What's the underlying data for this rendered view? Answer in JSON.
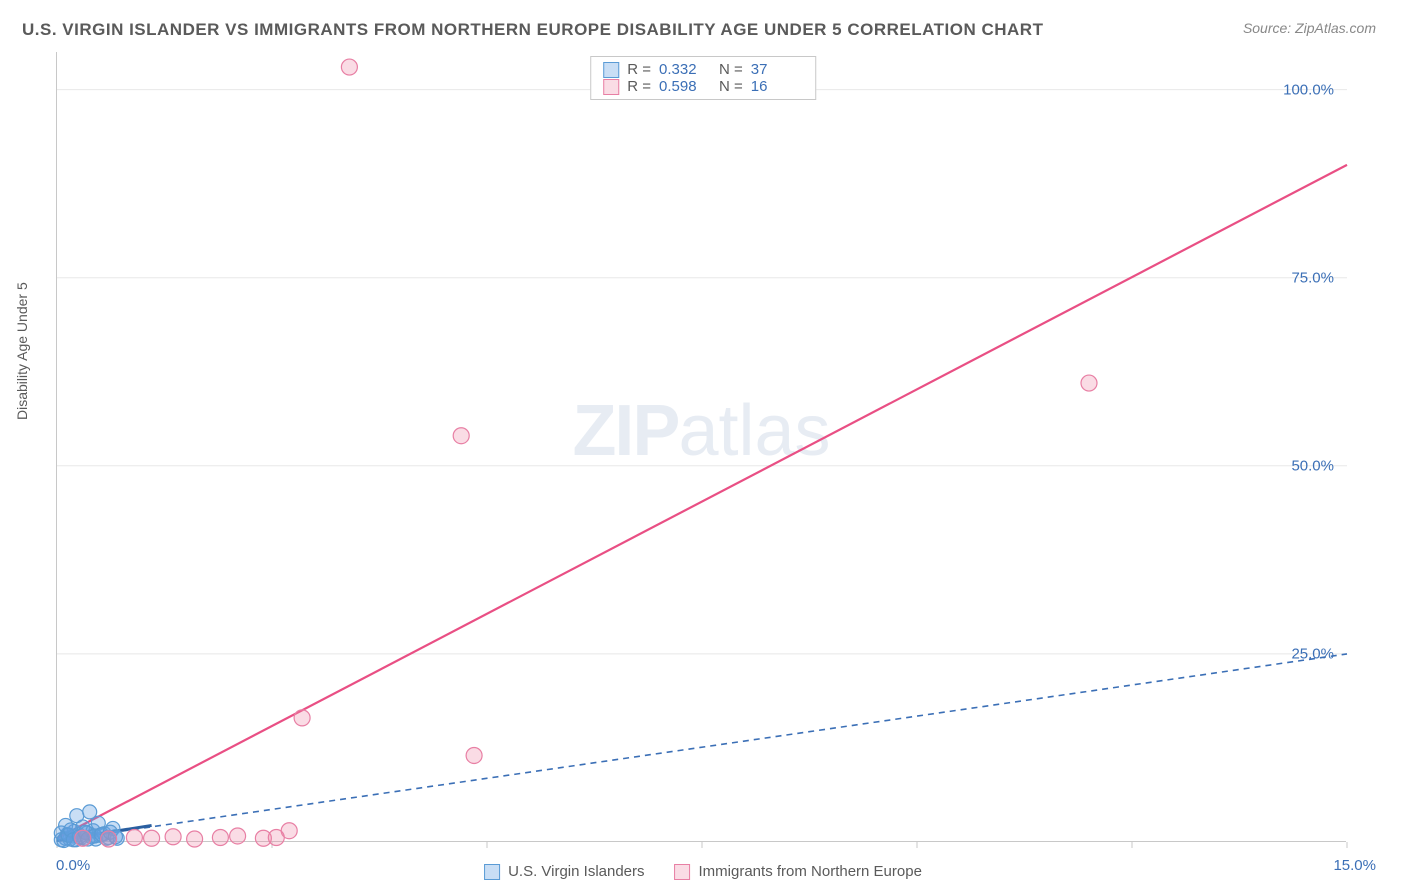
{
  "title": "U.S. VIRGIN ISLANDER VS IMMIGRANTS FROM NORTHERN EUROPE DISABILITY AGE UNDER 5 CORRELATION CHART",
  "source": "Source: ZipAtlas.com",
  "watermark_zip": "ZIP",
  "watermark_atlas": "atlas",
  "chart": {
    "type": "scatter",
    "ylabel": "Disability Age Under 5",
    "xlim": [
      0,
      15
    ],
    "ylim": [
      0,
      105
    ],
    "xticks": [
      0,
      2.5,
      5,
      7.5,
      10,
      12.5,
      15
    ],
    "xtick_labels": {
      "0": "0.0%",
      "15": "15.0%"
    },
    "yticks": [
      25,
      50,
      75,
      100
    ],
    "ytick_labels": [
      "25.0%",
      "50.0%",
      "75.0%",
      "100.0%"
    ],
    "grid_color": "#e8e8e8",
    "axis_color": "#c8c8c8",
    "tick_label_color": "#3b6fb6",
    "background_color": "#ffffff",
    "series": [
      {
        "name": "U.S. Virgin Islanders",
        "color_fill": "rgba(99,160,225,0.35)",
        "color_stroke": "#5a9bd5",
        "R": "0.332",
        "N": "37",
        "marker_radius": 7,
        "trend": {
          "x1": 0,
          "y1": 0.2,
          "x2": 15,
          "y2": 25,
          "dash": "6,5",
          "width": 1.6,
          "color": "#3b6fb6"
        },
        "trend_solid": {
          "x1": 0,
          "y1": 0.2,
          "x2": 1.1,
          "y2": 2.2,
          "width": 3,
          "color": "#2a5fa0"
        },
        "points": [
          [
            0.05,
            0.3
          ],
          [
            0.1,
            0.5
          ],
          [
            0.12,
            1.0
          ],
          [
            0.15,
            0.4
          ],
          [
            0.18,
            0.8
          ],
          [
            0.2,
            1.4
          ],
          [
            0.22,
            0.3
          ],
          [
            0.25,
            1.0
          ],
          [
            0.28,
            0.6
          ],
          [
            0.3,
            2.0
          ],
          [
            0.32,
            0.5
          ],
          [
            0.35,
            1.2
          ],
          [
            0.38,
            4.0
          ],
          [
            0.4,
            0.7
          ],
          [
            0.42,
            1.5
          ],
          [
            0.45,
            0.4
          ],
          [
            0.48,
            2.5
          ],
          [
            0.5,
            0.9
          ],
          [
            0.55,
            1.1
          ],
          [
            0.6,
            0.6
          ],
          [
            0.65,
            1.8
          ],
          [
            0.7,
            0.5
          ],
          [
            0.05,
            1.2
          ],
          [
            0.08,
            0.2
          ],
          [
            0.1,
            2.2
          ],
          [
            0.13,
            0.9
          ],
          [
            0.16,
            1.6
          ],
          [
            0.19,
            0.3
          ],
          [
            0.23,
            3.5
          ],
          [
            0.26,
            0.7
          ],
          [
            0.33,
            1.3
          ],
          [
            0.36,
            0.4
          ],
          [
            0.44,
            0.8
          ],
          [
            0.52,
            1.0
          ],
          [
            0.58,
            0.5
          ],
          [
            0.62,
            1.3
          ],
          [
            0.68,
            0.7
          ]
        ]
      },
      {
        "name": "Immigrants from Northern Europe",
        "color_fill": "rgba(240,140,170,0.30)",
        "color_stroke": "#e87fa4",
        "R": "0.598",
        "N": "16",
        "marker_radius": 8,
        "trend": {
          "x1": 0,
          "y1": 0.5,
          "x2": 15,
          "y2": 90,
          "dash": "none",
          "width": 2.2,
          "color": "#e94f84"
        },
        "points": [
          [
            0.3,
            0.5
          ],
          [
            0.6,
            0.4
          ],
          [
            0.9,
            0.6
          ],
          [
            1.1,
            0.5
          ],
          [
            1.35,
            0.7
          ],
          [
            1.6,
            0.4
          ],
          [
            1.9,
            0.6
          ],
          [
            2.1,
            0.8
          ],
          [
            2.4,
            0.5
          ],
          [
            2.7,
            1.5
          ],
          [
            2.85,
            16.5
          ],
          [
            3.4,
            103
          ],
          [
            4.7,
            54
          ],
          [
            4.85,
            11.5
          ],
          [
            12.0,
            61
          ],
          [
            2.55,
            0.6
          ]
        ]
      }
    ]
  },
  "stats_labels": {
    "R": "R =",
    "N": "N ="
  },
  "legend": {
    "series1": "U.S. Virgin Islanders",
    "series2": "Immigrants from Northern Europe"
  }
}
